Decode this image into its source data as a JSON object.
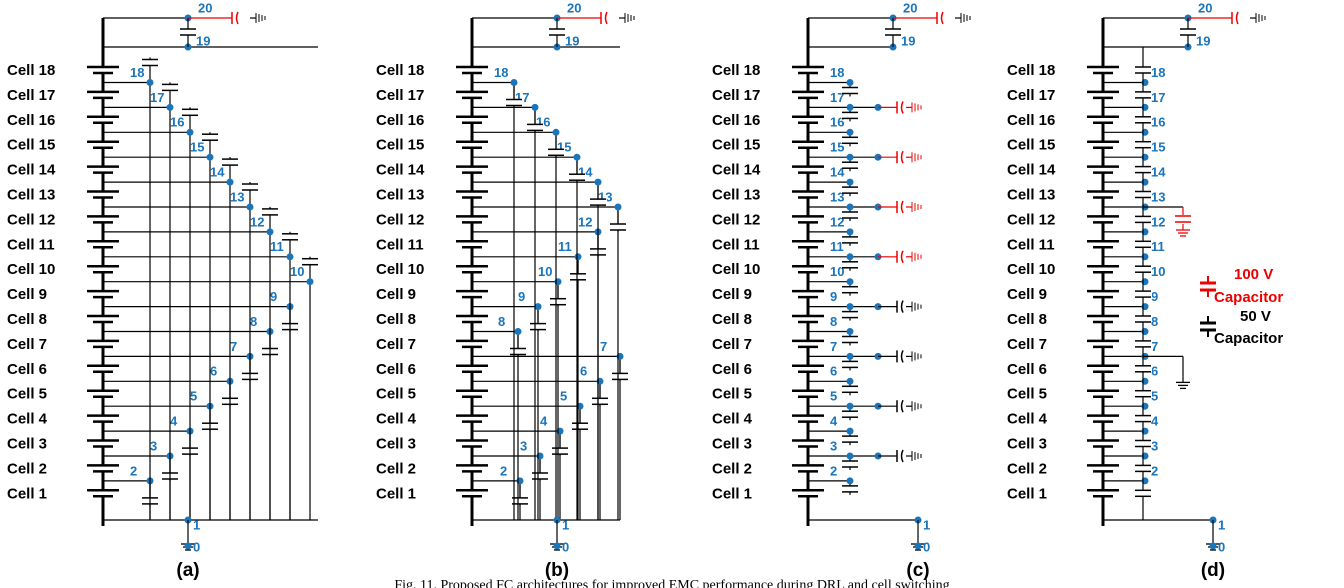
{
  "panels": [
    {
      "label": "(a)",
      "cells": [
        "Cell 1",
        "Cell 2",
        "Cell 3",
        "Cell 4",
        "Cell 5",
        "Cell 6",
        "Cell 7",
        "Cell 8",
        "Cell 9",
        "Cell 10",
        "Cell 11",
        "Cell 12",
        "Cell 13",
        "Cell 14",
        "Cell 15",
        "Cell 16",
        "Cell 17",
        "Cell 18"
      ],
      "nodes": [
        0,
        1,
        2,
        3,
        4,
        5,
        6,
        7,
        8,
        9,
        10,
        11,
        12,
        13,
        14,
        15,
        16,
        17,
        18,
        19,
        20
      ]
    },
    {
      "label": "(b)",
      "cells": [
        "Cell 1",
        "Cell 2",
        "Cell 3",
        "Cell 4",
        "Cell 5",
        "Cell 6",
        "Cell 7",
        "Cell 8",
        "Cell 9",
        "Cell 10",
        "Cell 11",
        "Cell 12",
        "Cell 13",
        "Cell 14",
        "Cell 15",
        "Cell 16",
        "Cell 17",
        "Cell 18"
      ],
      "nodes": [
        0,
        1,
        2,
        3,
        4,
        5,
        6,
        7,
        8,
        9,
        10,
        11,
        12,
        13,
        14,
        15,
        16,
        17,
        18,
        19,
        20
      ]
    },
    {
      "label": "(c)",
      "cells": [
        "Cell 1",
        "Cell 2",
        "Cell 3",
        "Cell 4",
        "Cell 5",
        "Cell 6",
        "Cell 7",
        "Cell 8",
        "Cell 9",
        "Cell 10",
        "Cell 11",
        "Cell 12",
        "Cell 13",
        "Cell 14",
        "Cell 15",
        "Cell 16",
        "Cell 17",
        "Cell 18"
      ],
      "nodes": [
        0,
        1,
        2,
        3,
        4,
        5,
        6,
        7,
        8,
        9,
        10,
        11,
        12,
        13,
        14,
        15,
        16,
        17,
        18,
        19,
        20
      ]
    },
    {
      "label": "(d)",
      "cells": [
        "Cell 1",
        "Cell 2",
        "Cell 3",
        "Cell 4",
        "Cell 5",
        "Cell 6",
        "Cell 7",
        "Cell 8",
        "Cell 9",
        "Cell 10",
        "Cell 11",
        "Cell 12",
        "Cell 13",
        "Cell 14",
        "Cell 15",
        "Cell 16",
        "Cell 17",
        "Cell 18"
      ],
      "nodes": [
        0,
        1,
        2,
        3,
        4,
        5,
        6,
        7,
        8,
        9,
        10,
        11,
        12,
        13,
        14,
        15,
        16,
        17,
        18,
        19,
        20
      ]
    }
  ],
  "legend": [
    {
      "voltage": "100 V",
      "text": "Capacitor"
    },
    {
      "voltage": "50 V",
      "text": "Capacitor"
    }
  ],
  "caption": "Fig. 11.  Proposed FC architectures for improved EMC performance during DRL and cell switching"
}
